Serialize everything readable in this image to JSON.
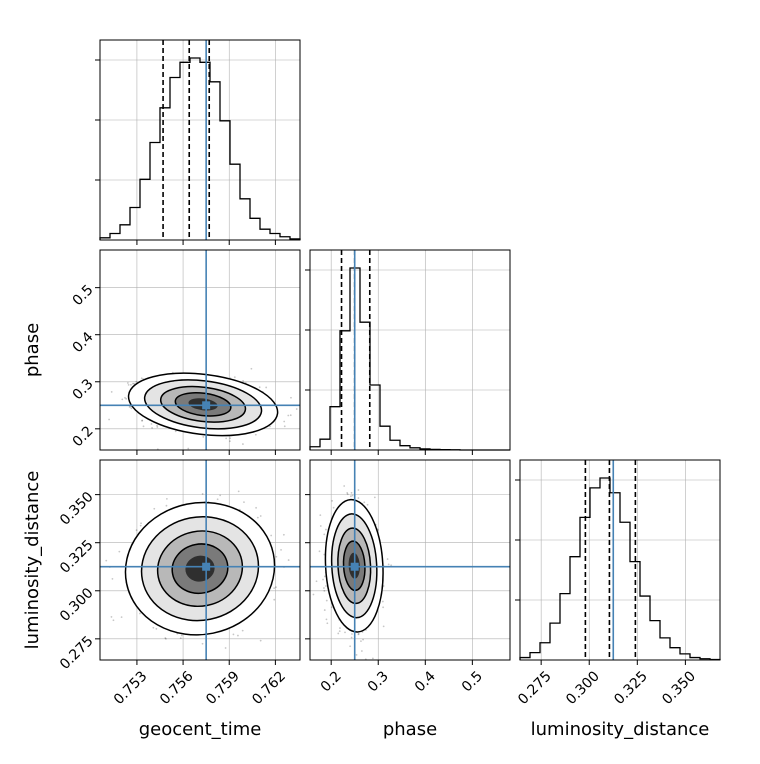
{
  "chart_data": {
    "type": "corner",
    "parameters": [
      {
        "name": "geocent_time",
        "label": "geocent_time",
        "range": [
          0.7506,
          0.7636
        ],
        "ticks": [
          0.753,
          0.756,
          0.759,
          0.762
        ],
        "tick_labels": [
          "0.753",
          "0.756",
          "0.759",
          "0.762"
        ],
        "truth": 0.7575,
        "quantiles": [
          0.7547,
          0.7564,
          0.7577
        ],
        "hist_bins": [
          0.7506,
          0.7636
        ],
        "hist_counts": [
          1,
          3,
          7,
          15,
          28,
          45,
          61,
          75,
          82,
          84,
          82,
          73,
          55,
          35,
          19,
          10,
          5,
          3,
          1.5,
          0.5
        ]
      },
      {
        "name": "phase",
        "label": "phase",
        "range": [
          0.155,
          0.58
        ],
        "ticks": [
          0.2,
          0.3,
          0.4,
          0.5
        ],
        "tick_labels": [
          "0.2",
          "0.3",
          "0.4",
          "0.5"
        ],
        "truth": 0.25,
        "quantiles": [
          0.222,
          0.25,
          0.282
        ],
        "hist_counts": [
          3,
          10,
          40,
          110,
          168,
          118,
          60,
          22,
          9,
          4,
          2,
          1,
          0.5,
          0.3,
          0.2,
          0,
          0,
          0,
          0,
          0
        ]
      },
      {
        "name": "luminosity_distance",
        "label": "luminosity_distance",
        "range": [
          0.264,
          0.368
        ],
        "ticks": [
          0.275,
          0.3,
          0.325,
          0.35
        ],
        "tick_labels": [
          "0.275",
          "0.300",
          "0.325",
          "0.350"
        ],
        "truth": 0.3125,
        "quantiles": [
          0.298,
          0.3105,
          0.324
        ],
        "hist_counts": [
          1,
          3,
          7,
          15,
          27,
          42,
          58,
          70,
          74,
          68,
          56,
          40,
          26,
          16,
          9,
          5,
          2.5,
          1,
          0.5,
          0.2
        ]
      }
    ],
    "pairs": [
      {
        "x": "geocent_time",
        "y": "phase",
        "mean": [
          0.7573,
          0.252
        ],
        "sd": [
          0.0019,
          0.026
        ],
        "corr": -0.25
      },
      {
        "x": "geocent_time",
        "y": "luminosity_distance",
        "mean": [
          0.7571,
          0.3115
        ],
        "sd": [
          0.0019,
          0.0135
        ],
        "corr": 0.05
      },
      {
        "x": "phase",
        "y": "luminosity_distance",
        "mean": [
          0.249,
          0.313
        ],
        "sd": [
          0.024,
          0.0135
        ],
        "corr": -0.1
      }
    ],
    "truth_color": "#4682b4",
    "grid": true
  }
}
